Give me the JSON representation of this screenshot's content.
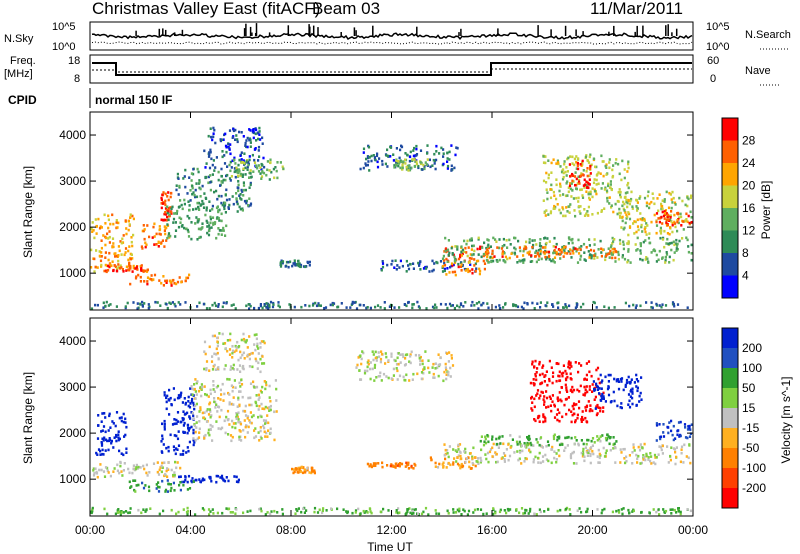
{
  "header": {
    "title": "Christmas Valley East (fitACF)",
    "beam": "Beam 03",
    "date": "11/Mar/2011"
  },
  "noise_panel": {
    "left_label": "N.Sky",
    "right_label": "N.Search",
    "left_ticks": [
      "10^5",
      "10^0"
    ],
    "right_ticks": [
      "10^5",
      "10^0"
    ]
  },
  "freq_panel": {
    "left_label_1": "Freq.",
    "left_label_2": "[MHz]",
    "right_label": "Nave",
    "left_ticks": [
      "18",
      "8"
    ],
    "right_ticks": [
      "60",
      "0"
    ]
  },
  "cpid": {
    "label": "CPID",
    "value": "normal 150 IF"
  },
  "colors": {
    "power": [
      "#0000ff",
      "#1e4aa0",
      "#2e8b57",
      "#5fae5f",
      "#c8d23c",
      "#ffa500",
      "#ff6000",
      "#ff0000"
    ],
    "velocity": [
      "#0020d0",
      "#2050c0",
      "#30a030",
      "#7fd040",
      "#c0c0c0",
      "#ffb020",
      "#ff8000",
      "#ff4000",
      "#ff0000"
    ]
  },
  "chart_data": [
    {
      "type": "heatmap",
      "ylabel": "Slant Range [km]",
      "yticks": [
        1000,
        2000,
        3000,
        4000
      ],
      "ylim": [
        200,
        4500
      ],
      "xlim": [
        0,
        24
      ],
      "colorbar": {
        "label": "Power [dB]",
        "ticks": [
          "4",
          "8",
          "12",
          "16",
          "20",
          "24",
          "28"
        ],
        "range": [
          0,
          32
        ]
      },
      "features": [
        {
          "t0": 0.0,
          "t1": 1.8,
          "r0": 1000,
          "r1": 2300,
          "v": 22
        },
        {
          "t0": 0.6,
          "t1": 2.4,
          "r0": 1000,
          "r1": 1200,
          "v": 27
        },
        {
          "t0": 1.5,
          "t1": 4.0,
          "r0": 700,
          "r1": 1000,
          "v": 26
        },
        {
          "t0": 2.0,
          "t1": 3.2,
          "r0": 1500,
          "r1": 2100,
          "v": 25
        },
        {
          "t0": 2.8,
          "t1": 3.3,
          "r0": 2100,
          "r1": 2800,
          "v": 28
        },
        {
          "t0": 3.0,
          "t1": 5.5,
          "r0": 1700,
          "r1": 2500,
          "v": 12
        },
        {
          "t0": 3.4,
          "t1": 6.5,
          "r0": 2300,
          "r1": 3300,
          "v": 10
        },
        {
          "t0": 4.5,
          "t1": 7.0,
          "r0": 3200,
          "r1": 4200,
          "v": 6
        },
        {
          "t0": 5.5,
          "t1": 7.8,
          "r0": 3000,
          "r1": 3500,
          "v": 14
        },
        {
          "t0": 7.5,
          "t1": 8.8,
          "r0": 1100,
          "r1": 1300,
          "v": 8
        },
        {
          "t0": 10.7,
          "t1": 14.7,
          "r0": 3200,
          "r1": 3800,
          "v": 7
        },
        {
          "t0": 12.0,
          "t1": 13.5,
          "r0": 3200,
          "r1": 3500,
          "v": 16
        },
        {
          "t0": 11.5,
          "t1": 15.5,
          "r0": 1000,
          "r1": 1300,
          "v": 6
        },
        {
          "t0": 14.0,
          "t1": 16.0,
          "r0": 900,
          "r1": 1600,
          "v": 26
        },
        {
          "t0": 14.0,
          "t1": 24.0,
          "r0": 1200,
          "r1": 1800,
          "v": 13
        },
        {
          "t0": 15.5,
          "t1": 21.0,
          "r0": 1300,
          "r1": 1600,
          "v": 25
        },
        {
          "t0": 18.0,
          "t1": 21.5,
          "r0": 2200,
          "r1": 3600,
          "v": 17
        },
        {
          "t0": 19.0,
          "t1": 20.0,
          "r0": 2800,
          "r1": 3500,
          "v": 29
        },
        {
          "t0": 21.0,
          "t1": 24.0,
          "r0": 1800,
          "r1": 2800,
          "v": 18
        },
        {
          "t0": 22.5,
          "t1": 24.0,
          "r0": 2000,
          "r1": 2400,
          "v": 27
        },
        {
          "t0": 0.0,
          "t1": 24.0,
          "r0": 200,
          "r1": 400,
          "v": 8
        }
      ]
    },
    {
      "type": "heatmap",
      "ylabel": "Slant Range [km]",
      "xlabel": "Time UT",
      "yticks": [
        1000,
        2000,
        3000,
        4000
      ],
      "xticks": [
        "00:00",
        "04:00",
        "08:00",
        "12:00",
        "16:00",
        "20:00",
        "00:00"
      ],
      "ylim": [
        200,
        4500
      ],
      "xlim": [
        0,
        24
      ],
      "colorbar": {
        "label": "Velocity [m s^-1]",
        "ticks": [
          "200",
          "100",
          "50",
          "15",
          "-15",
          "-50",
          "-100",
          "-200"
        ],
        "range": [
          -250,
          250
        ]
      },
      "features": [
        {
          "t0": 0.2,
          "t1": 1.5,
          "r0": 1500,
          "r1": 2500,
          "v": 180
        },
        {
          "t0": 0.0,
          "t1": 3.8,
          "r0": 1000,
          "r1": 1400,
          "v": 0
        },
        {
          "t0": 1.5,
          "t1": 4.2,
          "r0": 700,
          "r1": 1000,
          "v": 60
        },
        {
          "t0": 2.8,
          "t1": 4.2,
          "r0": 1500,
          "r1": 3000,
          "v": 220
        },
        {
          "t0": 4.0,
          "t1": 7.5,
          "r0": 1800,
          "r1": 3200,
          "v": 0
        },
        {
          "t0": 4.5,
          "t1": 7.0,
          "r0": 3300,
          "r1": 4200,
          "v": 0
        },
        {
          "t0": 3.5,
          "t1": 6.0,
          "r0": 900,
          "r1": 1100,
          "v": 220
        },
        {
          "t0": 8.0,
          "t1": 9.0,
          "r0": 1100,
          "r1": 1300,
          "v": -40
        },
        {
          "t0": 10.5,
          "t1": 14.5,
          "r0": 3100,
          "r1": 3800,
          "v": 0
        },
        {
          "t0": 11.0,
          "t1": 13.0,
          "r0": 1200,
          "r1": 1400,
          "v": -60
        },
        {
          "t0": 13.5,
          "t1": 15.5,
          "r0": 1200,
          "r1": 1500,
          "v": -40
        },
        {
          "t0": 14.0,
          "t1": 24.0,
          "r0": 1300,
          "r1": 1800,
          "v": 0
        },
        {
          "t0": 15.5,
          "t1": 21.0,
          "r0": 1700,
          "r1": 2000,
          "v": 40
        },
        {
          "t0": 17.5,
          "t1": 20.5,
          "r0": 2200,
          "r1": 3600,
          "v": -200
        },
        {
          "t0": 20.0,
          "t1": 22.0,
          "r0": 2500,
          "r1": 3300,
          "v": 200
        },
        {
          "t0": 22.5,
          "t1": 24.0,
          "r0": 1800,
          "r1": 2300,
          "v": 150
        },
        {
          "t0": 0.0,
          "t1": 24.0,
          "r0": 200,
          "r1": 400,
          "v": 40
        }
      ]
    }
  ]
}
